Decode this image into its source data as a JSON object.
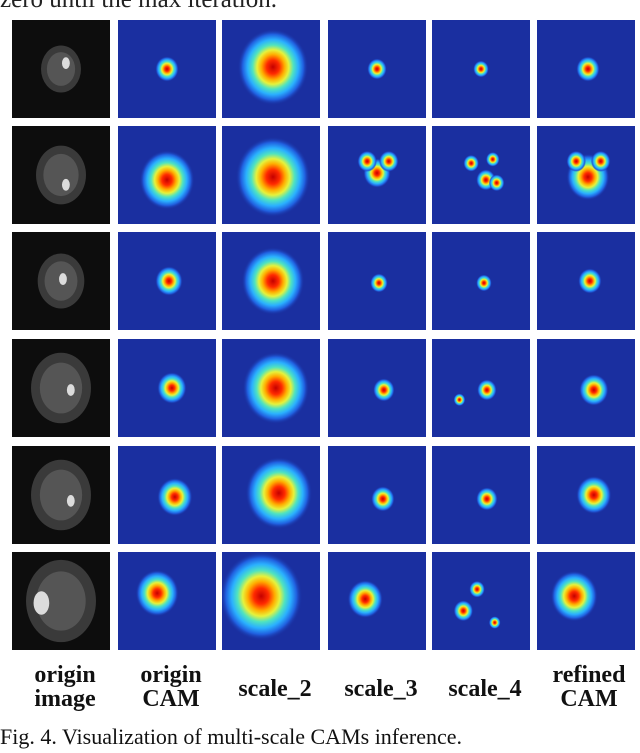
{
  "top_text": "zero until the max iteration.",
  "columns": [
    {
      "line1": "origin",
      "line2": "image"
    },
    {
      "line1": "origin",
      "line2": "CAM"
    },
    {
      "line1": "scale_2",
      "line2": ""
    },
    {
      "line1": "scale_3",
      "line2": ""
    },
    {
      "line1": "scale_4",
      "line2": ""
    },
    {
      "line1": "refined",
      "line2": "CAM"
    }
  ],
  "caption": "Fig. 4. Visualization of multi-scale CAMs inference.",
  "colors": {
    "heatmap_background": "#1a2fa0",
    "mri_background": "#0d0d0d"
  }
}
